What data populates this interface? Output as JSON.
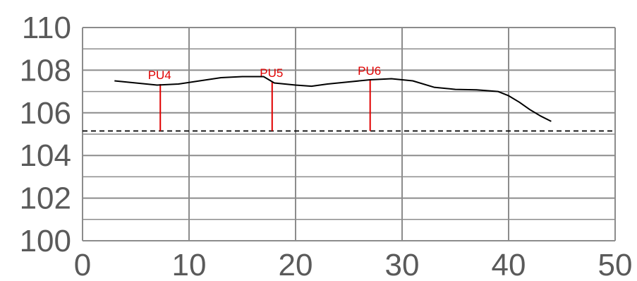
{
  "chart_data": {
    "type": "line",
    "title": "",
    "xlabel": "",
    "ylabel": "",
    "xlim": [
      0,
      50
    ],
    "ylim": [
      100,
      110
    ],
    "x_ticks": [
      0,
      10,
      20,
      30,
      40,
      50
    ],
    "x_tick_labels": [
      "0",
      "10",
      "20",
      "30",
      "40",
      "50"
    ],
    "y_ticks": [
      100,
      102,
      104,
      106,
      108,
      110
    ],
    "y_tick_labels": [
      "100",
      "102",
      "104",
      "106",
      "108",
      "110"
    ],
    "grid": true,
    "minor_y_gridlines": [
      101,
      103,
      105,
      107,
      109
    ],
    "series": [
      {
        "color": "#000000",
        "x": [
          3,
          5,
          7,
          9,
          11,
          13,
          15,
          17,
          18,
          20,
          21.5,
          23,
          25,
          27,
          29,
          31,
          33,
          35,
          37,
          39,
          40,
          41,
          42,
          43,
          44
        ],
        "y": [
          107.5,
          107.4,
          107.3,
          107.35,
          107.5,
          107.65,
          107.7,
          107.7,
          107.4,
          107.3,
          107.25,
          107.35,
          107.45,
          107.55,
          107.6,
          107.5,
          107.2,
          107.1,
          107.08,
          107.0,
          106.8,
          106.5,
          106.15,
          105.85,
          105.6
        ]
      }
    ],
    "reference_line": {
      "y": 105.15,
      "style": "dashed",
      "color": "#000000"
    },
    "annotations": [
      {
        "label": "PU4",
        "x": 7.3,
        "y_top": 107.35,
        "y_bottom": 105.15,
        "color": "#e00000"
      },
      {
        "label": "PU5",
        "x": 17.8,
        "y_top": 107.45,
        "y_bottom": 105.15,
        "color": "#e00000"
      },
      {
        "label": "PU6",
        "x": 27,
        "y_top": 107.55,
        "y_bottom": 105.15,
        "color": "#e00000"
      }
    ],
    "colors": {
      "grid": "#8c8c8c",
      "tick_text": "#5a5a5a",
      "annotation": "#e00000",
      "line": "#000000"
    }
  }
}
